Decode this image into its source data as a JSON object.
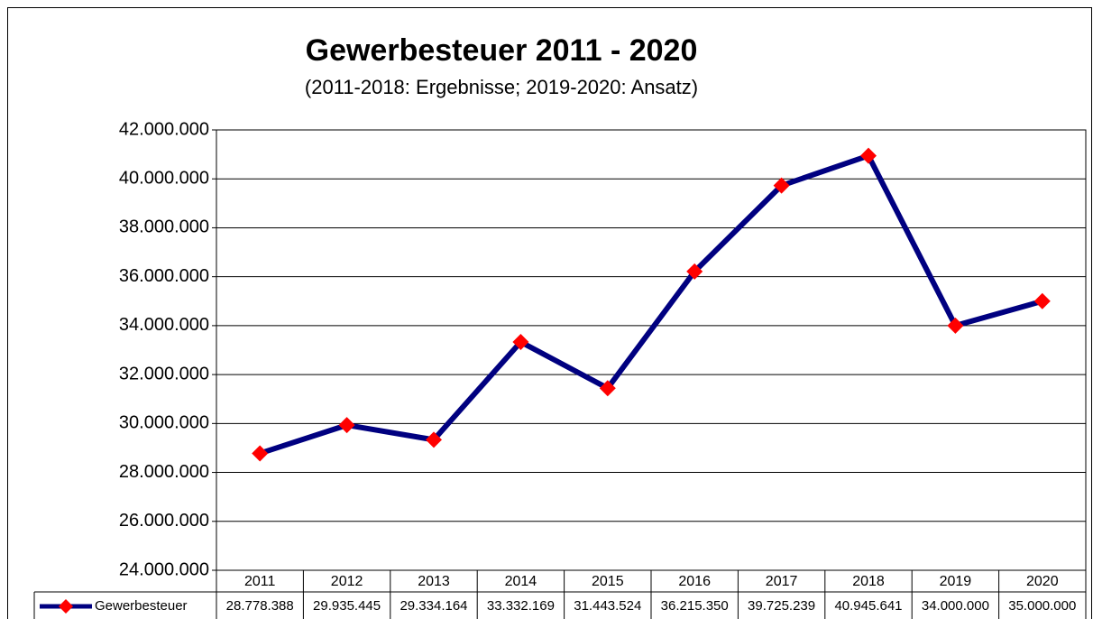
{
  "chart_data": {
    "type": "line",
    "title": "Gewerbesteuer 2011 - 2020",
    "subtitle": "(2011-2018: Ergebnisse; 2019-2020: Ansatz)",
    "categories": [
      "2011",
      "2012",
      "2013",
      "2014",
      "2015",
      "2016",
      "2017",
      "2018",
      "2019",
      "2020"
    ],
    "series": [
      {
        "name": "Gewerbesteuer",
        "color": "#000080",
        "marker_color": "#ff0000",
        "values": [
          28778388,
          29935445,
          29334164,
          33332169,
          31443524,
          36215350,
          39725239,
          40945641,
          34000000,
          35000000
        ],
        "value_labels": [
          "28.778.388",
          "29.935.445",
          "29.334.164",
          "33.332.169",
          "31.443.524",
          "36.215.350",
          "39.725.239",
          "40.945.641",
          "34.000.000",
          "35.000.000"
        ]
      }
    ],
    "ylim": [
      24000000,
      42000000
    ],
    "yticks": [
      {
        "value": 24000000,
        "label": "24.000.000"
      },
      {
        "value": 26000000,
        "label": "26.000.000"
      },
      {
        "value": 28000000,
        "label": "28.000.000"
      },
      {
        "value": 30000000,
        "label": "30.000.000"
      },
      {
        "value": 32000000,
        "label": "32.000.000"
      },
      {
        "value": 34000000,
        "label": "34.000.000"
      },
      {
        "value": 36000000,
        "label": "36.000.000"
      },
      {
        "value": 38000000,
        "label": "38.000.000"
      },
      {
        "value": 40000000,
        "label": "40.000.000"
      },
      {
        "value": 42000000,
        "label": "42.000.000"
      }
    ],
    "grid": true,
    "data_table": true
  }
}
